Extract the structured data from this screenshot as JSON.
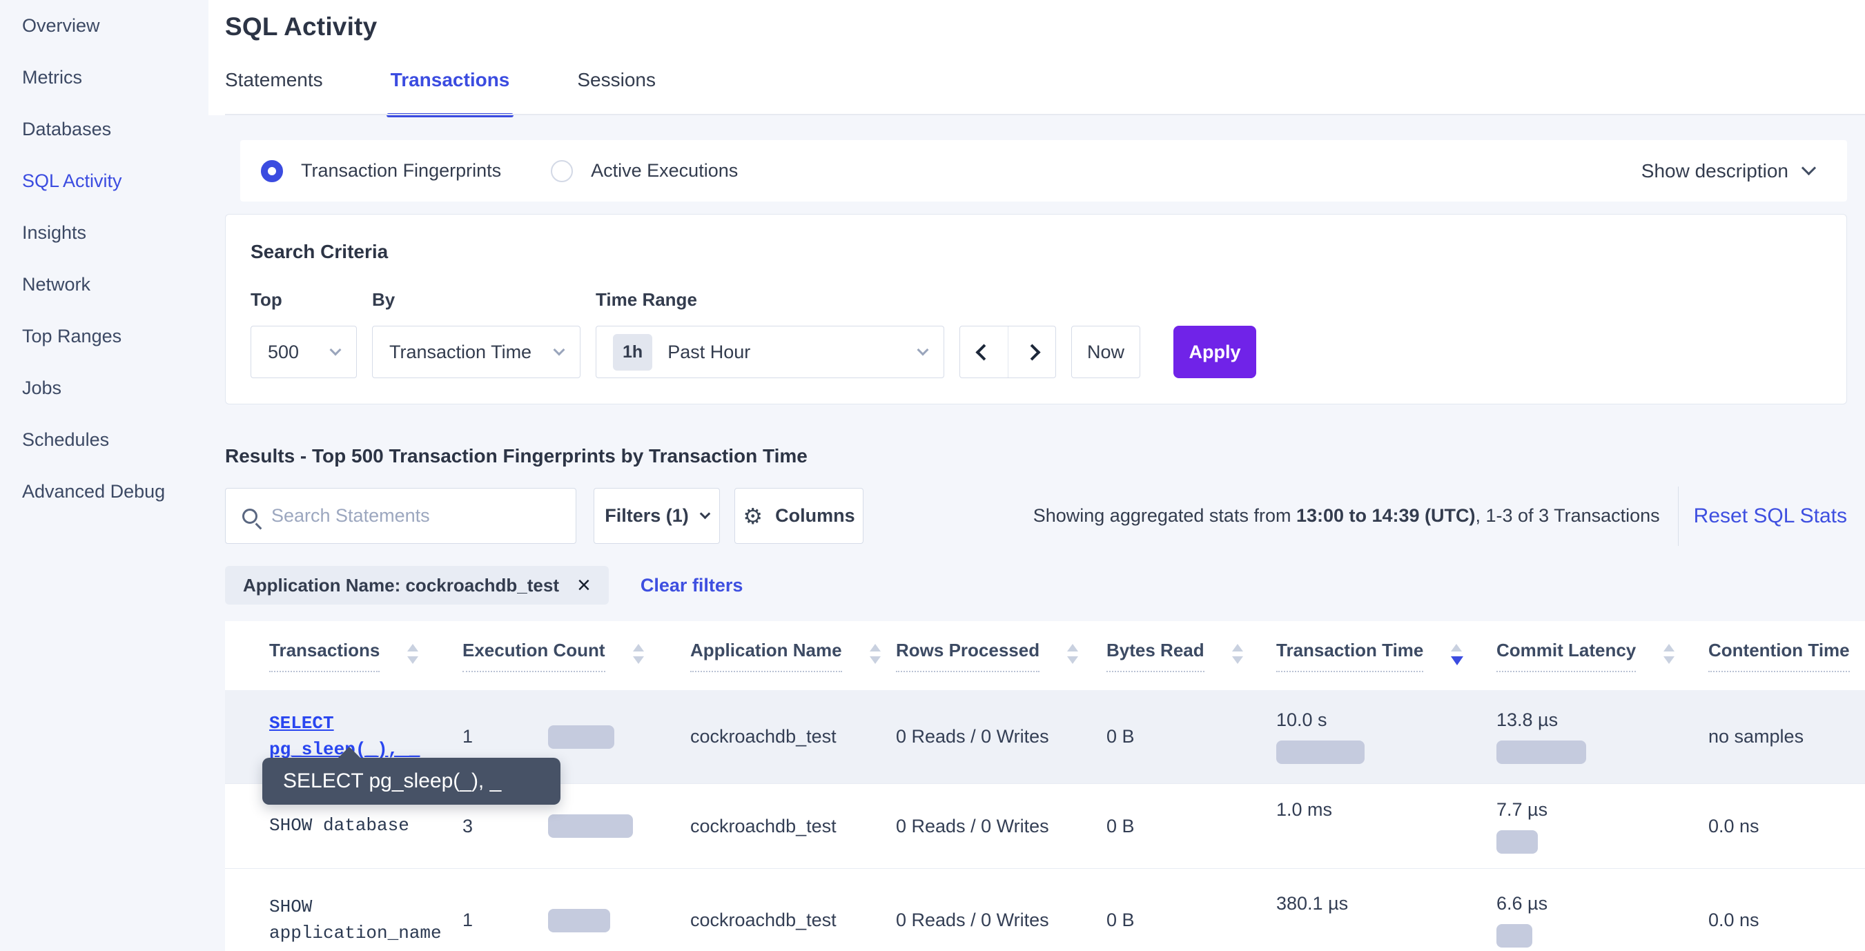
{
  "sidebar": {
    "items": [
      {
        "label": "Overview",
        "active": false
      },
      {
        "label": "Metrics",
        "active": false
      },
      {
        "label": "Databases",
        "active": false
      },
      {
        "label": "SQL Activity",
        "active": true
      },
      {
        "label": "Insights",
        "active": false
      },
      {
        "label": "Network",
        "active": false
      },
      {
        "label": "Top Ranges",
        "active": false
      },
      {
        "label": "Jobs",
        "active": false
      },
      {
        "label": "Schedules",
        "active": false
      },
      {
        "label": "Advanced Debug",
        "active": false
      }
    ]
  },
  "header": {
    "title": "SQL Activity",
    "tabs": [
      {
        "label": "Statements",
        "active": false
      },
      {
        "label": "Transactions",
        "active": true
      },
      {
        "label": "Sessions",
        "active": false
      }
    ]
  },
  "view_toggle": {
    "options": [
      {
        "label": "Transaction Fingerprints",
        "selected": true
      },
      {
        "label": "Active Executions",
        "selected": false
      }
    ],
    "show_description_label": "Show description"
  },
  "search_criteria": {
    "title": "Search Criteria",
    "top_label": "Top",
    "top_value": "500",
    "by_label": "By",
    "by_value": "Transaction Time",
    "time_range_label": "Time Range",
    "time_range_badge": "1h",
    "time_range_value": "Past Hour",
    "now_label": "Now",
    "apply_label": "Apply"
  },
  "results": {
    "heading": "Results - Top 500 Transaction Fingerprints by Transaction Time",
    "search_placeholder": "Search Statements",
    "filters_label": "Filters (1)",
    "columns_label": "Columns",
    "stats_prefix": "Showing aggregated stats from ",
    "stats_range": "13:00 to 14:39 (UTC)",
    "stats_suffix": ", 1-3 of 3 Transactions",
    "reset_label": "Reset SQL Stats",
    "filter_chip": "Application Name: cockroachdb_test",
    "chip_close": "×",
    "clear_filters_label": "Clear filters"
  },
  "table": {
    "columns": [
      "Transactions",
      "Execution Count",
      "Application Name",
      "Rows Processed",
      "Bytes Read",
      "Transaction Time",
      "Commit Latency",
      "Contention Time"
    ],
    "sorted_column": "Transaction Time",
    "rows": [
      {
        "transaction": "SELECT pg_sleep(_), _",
        "execution_count": "1",
        "exec_bar": 96,
        "application_name": "cockroachdb_test",
        "rows_processed": "0 Reads / 0 Writes",
        "bytes_read": "0 B",
        "transaction_time": "10.0 s",
        "txn_bar": 128,
        "commit_latency": "13.8 µs",
        "commit_bar": 130,
        "contention_time": "no samples"
      },
      {
        "transaction": "SHOW database",
        "execution_count": "3",
        "exec_bar": 123,
        "application_name": "cockroachdb_test",
        "rows_processed": "0 Reads / 0 Writes",
        "bytes_read": "0 B",
        "transaction_time": "1.0 ms",
        "txn_bar": 0,
        "commit_latency": "7.7 µs",
        "commit_bar": 60,
        "contention_time": "0.0 ns"
      },
      {
        "transaction": "SHOW application_name",
        "execution_count": "1",
        "exec_bar": 90,
        "application_name": "cockroachdb_test",
        "rows_processed": "0 Reads / 0 Writes",
        "bytes_read": "0 B",
        "transaction_time": "380.1 µs",
        "txn_bar": 0,
        "commit_latency": "6.6 µs",
        "commit_bar": 52,
        "contention_time": "0.0 ns"
      }
    ]
  },
  "tooltip": {
    "text": "SELECT pg_sleep(_), _"
  },
  "colors": {
    "accent_blue": "#3b4ce0",
    "statement_link_blue": "#2946f0",
    "apply_purple": "#7023e8",
    "bar_gray": "#c5cbde",
    "tooltip_bg": "#475266",
    "page_gray": "#f4f6fb",
    "row_hover_gray": "#eef1f7"
  }
}
